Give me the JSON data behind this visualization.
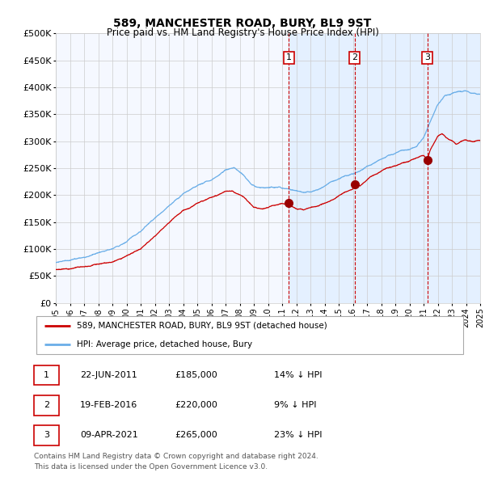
{
  "title": "589, MANCHESTER ROAD, BURY, BL9 9ST",
  "subtitle": "Price paid vs. HM Land Registry's House Price Index (HPI)",
  "hpi_color": "#6aaee8",
  "price_color": "#cc0000",
  "sale_marker_color": "#990000",
  "vline_color": "#cc0000",
  "shade_color": "#ddeeff",
  "grid_color": "#cccccc",
  "bg_color": "#f5f8ff",
  "sale_dates": [
    2011.47,
    2016.12,
    2021.27
  ],
  "sale_prices": [
    185000,
    220000,
    265000
  ],
  "sale_labels": [
    "1",
    "2",
    "3"
  ],
  "legend_label_red": "589, MANCHESTER ROAD, BURY, BL9 9ST (detached house)",
  "legend_label_blue": "HPI: Average price, detached house, Bury",
  "table_rows": [
    [
      "1",
      "22-JUN-2011",
      "£185,000",
      "14% ↓ HPI"
    ],
    [
      "2",
      "19-FEB-2016",
      "£220,000",
      "9% ↓ HPI"
    ],
    [
      "3",
      "09-APR-2021",
      "£265,000",
      "23% ↓ HPI"
    ]
  ],
  "footnote1": "Contains HM Land Registry data © Crown copyright and database right 2024.",
  "footnote2": "This data is licensed under the Open Government Licence v3.0.",
  "y_ticks": [
    0,
    50000,
    100000,
    150000,
    200000,
    250000,
    300000,
    350000,
    400000,
    450000,
    500000
  ],
  "y_tick_labels": [
    "£0",
    "£50K",
    "£100K",
    "£150K",
    "£200K",
    "£250K",
    "£300K",
    "£350K",
    "£400K",
    "£450K",
    "£500K"
  ]
}
